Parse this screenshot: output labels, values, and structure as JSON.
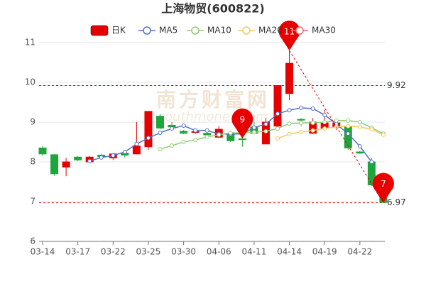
{
  "chart_data": {
    "type": "candlestick",
    "title": "上海物贸(600822)",
    "watermark": "南方财富网",
    "watermark_sub": "southmoney.com",
    "categories": [
      "03-14",
      null,
      null,
      "03-17",
      null,
      null,
      "03-22",
      null,
      null,
      "03-25",
      null,
      null,
      "03-30",
      null,
      null,
      "04-06",
      null,
      null,
      "04-11",
      null,
      null,
      "04-14",
      null,
      null,
      "04-19",
      null,
      null,
      "04-22",
      null,
      null
    ],
    "ylim": [
      6,
      11
    ],
    "yticks": [
      6,
      7,
      8,
      9,
      10,
      11
    ],
    "grid": true,
    "series": [
      {
        "name": "日K",
        "color": "#e60000",
        "down_color": "#1ea53c",
        "open": [
          8.35,
          8.18,
          7.87,
          8.12,
          8.0,
          8.17,
          8.1,
          8.22,
          8.2,
          8.38,
          9.15,
          8.92,
          8.77,
          8.74,
          8.72,
          8.62,
          8.72,
          8.58,
          8.88,
          8.45,
          8.9,
          9.72,
          9.07,
          8.72,
          8.85,
          8.87,
          8.9,
          8.25,
          8.0,
          7.25
        ],
        "close": [
          8.2,
          7.7,
          8.0,
          8.05,
          8.12,
          8.13,
          8.2,
          8.17,
          8.4,
          9.27,
          8.85,
          8.88,
          8.72,
          8.76,
          8.68,
          8.82,
          8.53,
          8.56,
          8.72,
          9.0,
          9.92,
          10.48,
          9.05,
          9.0,
          8.98,
          8.98,
          8.35,
          8.22,
          7.42,
          6.98
        ],
        "high": [
          8.4,
          8.2,
          8.1,
          8.15,
          8.15,
          8.2,
          8.22,
          8.25,
          9.0,
          9.27,
          9.2,
          9.0,
          8.8,
          8.8,
          8.75,
          8.9,
          8.75,
          8.7,
          9.0,
          9.1,
          9.92,
          10.8,
          9.1,
          9.1,
          9.3,
          9.0,
          8.95,
          8.28,
          8.1,
          7.3
        ],
        "low": [
          8.15,
          7.65,
          7.64,
          8.02,
          7.98,
          8.1,
          8.05,
          8.1,
          8.2,
          8.3,
          8.82,
          8.85,
          8.7,
          8.7,
          8.65,
          8.6,
          8.5,
          8.38,
          8.7,
          8.45,
          8.85,
          9.55,
          8.9,
          8.7,
          8.8,
          8.8,
          8.3,
          8.2,
          7.4,
          6.97
        ]
      },
      {
        "name": "MA5",
        "color": "#5470c6",
        "values": [
          null,
          null,
          null,
          null,
          8.02,
          8.11,
          8.16,
          8.25,
          8.45,
          8.6,
          8.73,
          8.84,
          8.91,
          8.79,
          8.79,
          8.7,
          8.7,
          8.7,
          8.86,
          8.95,
          9.21,
          9.3,
          9.36,
          9.34,
          9.18,
          8.95,
          8.71,
          8.39,
          8.0,
          null
        ]
      },
      {
        "name": "MA10",
        "color": "#91cc75",
        "values": [
          null,
          null,
          null,
          null,
          null,
          null,
          null,
          null,
          null,
          null,
          8.32,
          8.41,
          8.5,
          8.55,
          8.63,
          8.68,
          8.73,
          8.73,
          8.75,
          8.77,
          8.84,
          8.96,
          8.98,
          8.98,
          9.0,
          9.04,
          9.04,
          9.0,
          8.86,
          8.71
        ]
      },
      {
        "name": "MA20",
        "color": "#fac858",
        "values": [
          null,
          null,
          null,
          null,
          null,
          null,
          null,
          null,
          null,
          null,
          null,
          null,
          null,
          null,
          null,
          null,
          null,
          null,
          null,
          null,
          8.59,
          8.7,
          8.75,
          8.79,
          8.84,
          8.88,
          8.9,
          8.88,
          8.82,
          8.68
        ]
      },
      {
        "name": "MA30",
        "color": "#ee6666",
        "values": [
          null,
          null,
          null,
          null,
          null,
          null,
          null,
          null,
          null,
          null,
          null,
          null,
          null,
          null,
          null,
          null,
          null,
          null,
          null,
          null,
          null,
          null,
          null,
          null,
          null,
          null,
          null,
          null,
          null,
          null
        ]
      }
    ],
    "reference_lines": [
      9.92,
      6.97
    ],
    "reference_color": "#e60000",
    "pins": [
      {
        "x_index": 21,
        "value": 10.8,
        "label": "11"
      },
      {
        "x_index": 17,
        "value": 8.59,
        "label": "9"
      },
      {
        "x_index": 29,
        "value": 6.97,
        "label": "7"
      }
    ],
    "pin_color": "#e60000"
  }
}
